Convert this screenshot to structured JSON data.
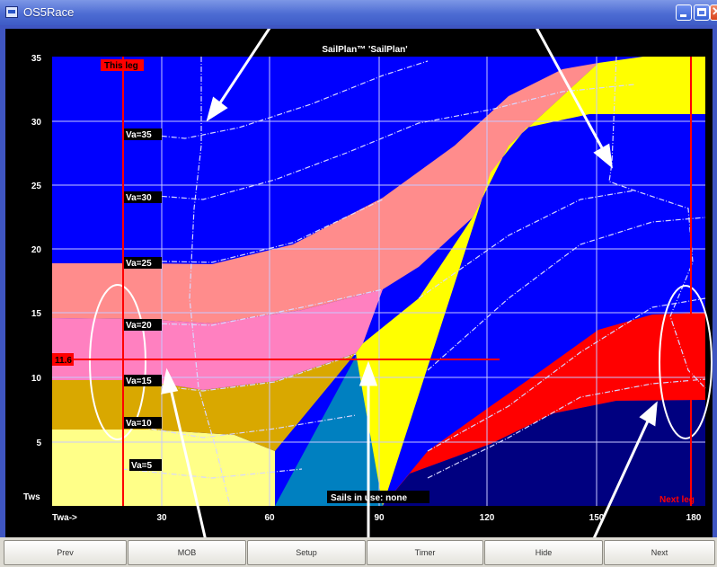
{
  "window": {
    "title": "OS5Race"
  },
  "chart": {
    "title": "SailPlan™ 'SailPlan'",
    "y_axis_label": "Tws",
    "x_axis_label": "Twa->",
    "marker_this_leg": "This leg",
    "marker_next_leg": "Next leg",
    "current_tws_label": "11.6",
    "sails_status": "Sails in use: none",
    "y_ticks": [
      "5",
      "10",
      "15",
      "20",
      "25",
      "30",
      "35"
    ],
    "x_ticks": [
      "30",
      "60",
      "90",
      "120",
      "150",
      "180"
    ],
    "va_labels": [
      "Va=35",
      "Va=30",
      "Va=25",
      "Va=20",
      "Va=15",
      "Va=10",
      "Va=5"
    ],
    "colors": {
      "background_top": "#0000ff",
      "salmon_band": "#ff8c8c",
      "pink_band": "#ff80c0",
      "gold_band": "#d9a800",
      "pale_yellow": "#ffff88",
      "yellow_band": "#ffff00",
      "teal_band": "#0080c0",
      "red_band": "#ff0000",
      "navy_band": "#000080",
      "marker_red": "#ff0000"
    }
  },
  "chart_data": {
    "type": "area",
    "title": "SailPlan™ 'SailPlan'",
    "xlabel": "Twa->",
    "ylabel": "Tws",
    "xlim": [
      20,
      180
    ],
    "ylim": [
      0,
      35
    ],
    "this_leg_twa": 18,
    "next_leg_twa": 178,
    "current_tws": 11.6,
    "va_isolines": [
      35,
      30,
      25,
      20,
      15,
      10,
      5
    ],
    "grid": true
  },
  "buttons": [
    "Prev",
    "MOB",
    "Setup",
    "Timer",
    "Hide",
    "Next"
  ]
}
